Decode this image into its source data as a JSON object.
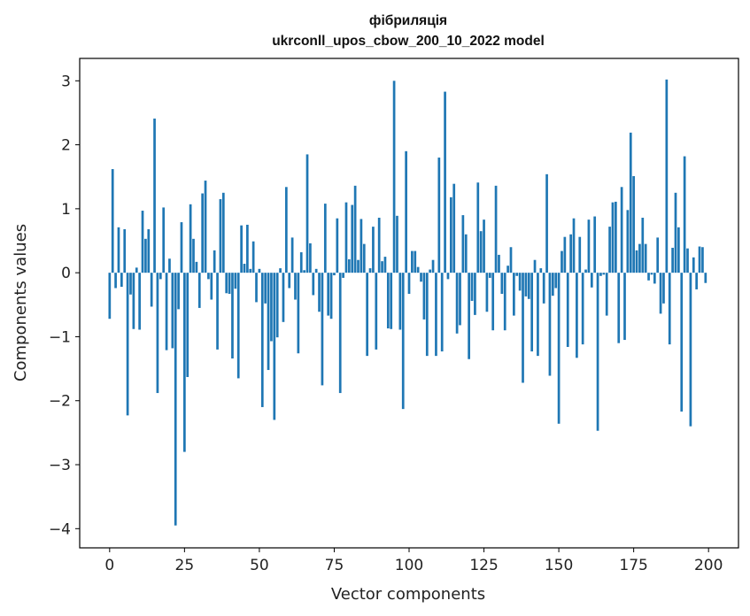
{
  "chart_data": {
    "type": "bar",
    "title": "фібриляція",
    "subtitle": "ukrconll_upos_cbow_200_10_2022 model",
    "xlabel": "Vector components",
    "ylabel": "Components values",
    "xlim": [
      -10,
      210
    ],
    "ylim": [
      -4.3,
      3.35
    ],
    "xticks": [
      0,
      25,
      50,
      75,
      100,
      125,
      150,
      175,
      200
    ],
    "xtick_labels": [
      "0",
      "25",
      "50",
      "75",
      "100",
      "125",
      "150",
      "175",
      "200"
    ],
    "yticks": [
      -4,
      -3,
      -2,
      -1,
      0,
      1,
      2,
      3
    ],
    "ytick_labels": [
      "−4",
      "−3",
      "−2",
      "−1",
      "0",
      "1",
      "2",
      "3"
    ],
    "grid": false,
    "legend": false,
    "bar_color": "#1f77b4",
    "x": [
      0,
      1,
      2,
      3,
      4,
      5,
      6,
      7,
      8,
      9,
      10,
      11,
      12,
      13,
      14,
      15,
      16,
      17,
      18,
      19,
      20,
      21,
      22,
      23,
      24,
      25,
      26,
      27,
      28,
      29,
      30,
      31,
      32,
      33,
      34,
      35,
      36,
      37,
      38,
      39,
      40,
      41,
      42,
      43,
      44,
      45,
      46,
      47,
      48,
      49,
      50,
      51,
      52,
      53,
      54,
      55,
      56,
      57,
      58,
      59,
      60,
      61,
      62,
      63,
      64,
      65,
      66,
      67,
      68,
      69,
      70,
      71,
      72,
      73,
      74,
      75,
      76,
      77,
      78,
      79,
      80,
      81,
      82,
      83,
      84,
      85,
      86,
      87,
      88,
      89,
      90,
      91,
      92,
      93,
      94,
      95,
      96,
      97,
      98,
      99,
      100,
      101,
      102,
      103,
      104,
      105,
      106,
      107,
      108,
      109,
      110,
      111,
      112,
      113,
      114,
      115,
      116,
      117,
      118,
      119,
      120,
      121,
      122,
      123,
      124,
      125,
      126,
      127,
      128,
      129,
      130,
      131,
      132,
      133,
      134,
      135,
      136,
      137,
      138,
      139,
      140,
      141,
      142,
      143,
      144,
      145,
      146,
      147,
      148,
      149,
      150,
      151,
      152,
      153,
      154,
      155,
      156,
      157,
      158,
      159,
      160,
      161,
      162,
      163,
      164,
      165,
      166,
      167,
      168,
      169,
      170,
      171,
      172,
      173,
      174,
      175,
      176,
      177,
      178,
      179,
      180,
      181,
      182,
      183,
      184,
      185,
      186,
      187,
      188,
      189,
      190,
      191,
      192,
      193,
      194,
      195,
      196,
      197,
      198,
      199
    ],
    "values": [
      -0.72,
      1.62,
      -0.24,
      0.71,
      -0.22,
      0.68,
      -2.23,
      -0.34,
      -0.88,
      0.08,
      -0.89,
      0.97,
      0.53,
      0.68,
      -0.53,
      2.41,
      -1.88,
      -0.1,
      1.02,
      -1.21,
      0.22,
      -1.18,
      -3.95,
      -0.57,
      0.79,
      -2.8,
      -1.63,
      1.07,
      0.53,
      0.17,
      -0.55,
      1.24,
      1.44,
      -0.1,
      -0.42,
      0.35,
      -1.2,
      1.15,
      1.25,
      -0.32,
      -0.33,
      -1.34,
      -0.25,
      -1.65,
      0.74,
      0.14,
      0.75,
      0.06,
      0.49,
      -0.46,
      0.06,
      -2.1,
      -0.48,
      -1.52,
      -1.07,
      -2.3,
      -1.01,
      0.07,
      -0.77,
      1.34,
      -0.24,
      0.55,
      -0.42,
      -1.26,
      0.32,
      0.04,
      1.85,
      0.46,
      -0.35,
      0.06,
      -0.61,
      -1.76,
      1.08,
      -0.67,
      -0.72,
      -0.04,
      0.85,
      -1.88,
      -0.08,
      1.1,
      0.21,
      1.06,
      1.36,
      0.2,
      0.84,
      0.45,
      -1.3,
      0.07,
      0.72,
      -1.2,
      0.86,
      0.18,
      0.25,
      -0.87,
      -0.88,
      3.0,
      0.89,
      -0.89,
      -2.13,
      1.9,
      -0.33,
      0.34,
      0.34,
      0.09,
      -0.14,
      -0.73,
      -1.3,
      0.05,
      0.2,
      -1.3,
      1.8,
      -1.23,
      2.83,
      -0.1,
      1.18,
      1.39,
      -0.95,
      -0.82,
      0.9,
      0.6,
      -1.35,
      -0.44,
      -0.66,
      1.41,
      0.65,
      0.83,
      -0.61,
      -0.08,
      -0.9,
      1.36,
      0.28,
      -0.33,
      -0.9,
      0.11,
      0.4,
      -0.67,
      -0.05,
      -0.28,
      -1.72,
      -0.37,
      -0.41,
      -1.23,
      0.2,
      -1.3,
      0.07,
      -0.48,
      1.54,
      -1.61,
      -0.36,
      -0.24,
      -2.36,
      0.34,
      0.56,
      -1.16,
      0.6,
      0.85,
      -1.33,
      0.56,
      -1.12,
      0.05,
      0.83,
      -0.23,
      0.88,
      -2.47,
      -0.05,
      -0.03,
      -0.67,
      0.72,
      1.1,
      1.11,
      -1.1,
      1.34,
      -1.05,
      0.98,
      2.19,
      1.51,
      0.35,
      0.45,
      0.86,
      0.45,
      -0.12,
      -0.03,
      -0.17,
      0.55,
      -0.64,
      -0.48,
      3.02,
      -1.12,
      0.39,
      1.25,
      0.71,
      -2.17,
      1.82,
      0.38,
      -2.4,
      0.24,
      -0.26,
      0.41,
      0.4,
      -0.16
    ]
  }
}
